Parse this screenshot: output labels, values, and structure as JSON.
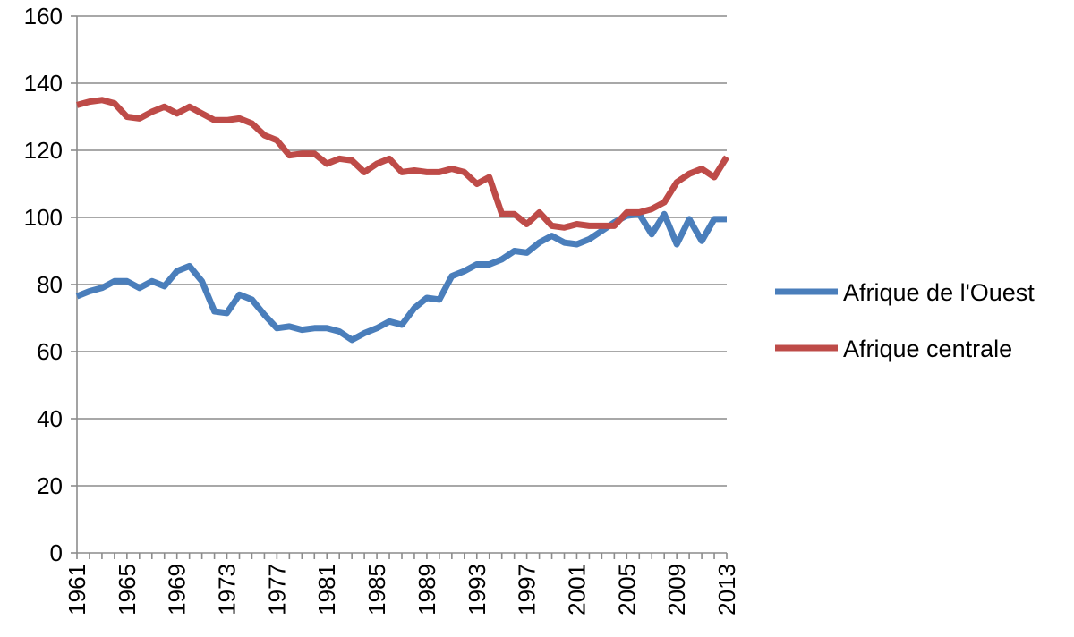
{
  "chart_data": {
    "type": "line",
    "title": "",
    "xlabel": "",
    "ylabel": "",
    "ylim": [
      0,
      160
    ],
    "yticks": [
      0,
      20,
      40,
      60,
      80,
      100,
      120,
      140,
      160
    ],
    "xlim": [
      1961,
      2013
    ],
    "xtick_labels": [
      "1961",
      "1965",
      "1969",
      "1973",
      "1977",
      "1981",
      "1985",
      "1989",
      "1993",
      "1997",
      "2001",
      "2005",
      "2009",
      "2013"
    ],
    "grid": "horizontal",
    "legend_position": "right",
    "x": [
      1961,
      1962,
      1963,
      1964,
      1965,
      1966,
      1967,
      1968,
      1969,
      1970,
      1971,
      1972,
      1973,
      1974,
      1975,
      1976,
      1977,
      1978,
      1979,
      1980,
      1981,
      1982,
      1983,
      1984,
      1985,
      1986,
      1987,
      1988,
      1989,
      1990,
      1991,
      1992,
      1993,
      1994,
      1995,
      1996,
      1997,
      1998,
      1999,
      2000,
      2001,
      2002,
      2003,
      2004,
      2005,
      2006,
      2007,
      2008,
      2009,
      2010,
      2011,
      2012,
      2013
    ],
    "series": [
      {
        "name": "Afrique de l'Ouest",
        "color": "#4a7ebb",
        "values": [
          76.5,
          78,
          79,
          81,
          81,
          79,
          81,
          79.5,
          84,
          85.5,
          81,
          72,
          71.5,
          77,
          75.5,
          71,
          67,
          67.5,
          66.5,
          67,
          67,
          66,
          63.5,
          65.5,
          67,
          69,
          68,
          73,
          76,
          75.5,
          82.5,
          84,
          86,
          86,
          87.5,
          90,
          89.5,
          92.5,
          94.5,
          92.5,
          92,
          93.5,
          96,
          98.5,
          100.5,
          101,
          95,
          101,
          92,
          99.5,
          93,
          99.5,
          99.5
        ]
      },
      {
        "name": "Afrique centrale",
        "color": "#be4b48",
        "values": [
          133.5,
          134.5,
          135,
          134,
          130,
          129.5,
          131.5,
          133,
          131,
          133,
          131,
          129,
          129,
          129.5,
          128,
          124.5,
          123,
          118.5,
          119,
          119,
          116,
          117.5,
          117,
          113.5,
          116,
          117.5,
          113.5,
          114,
          113.5,
          113.5,
          114.5,
          113.5,
          110,
          112,
          101,
          101,
          98,
          101.5,
          97.5,
          97,
          98,
          97.5,
          97.5,
          97.5,
          101.5,
          101.5,
          102.5,
          104.5,
          110.5,
          113,
          114.5,
          112,
          118
        ]
      }
    ]
  }
}
